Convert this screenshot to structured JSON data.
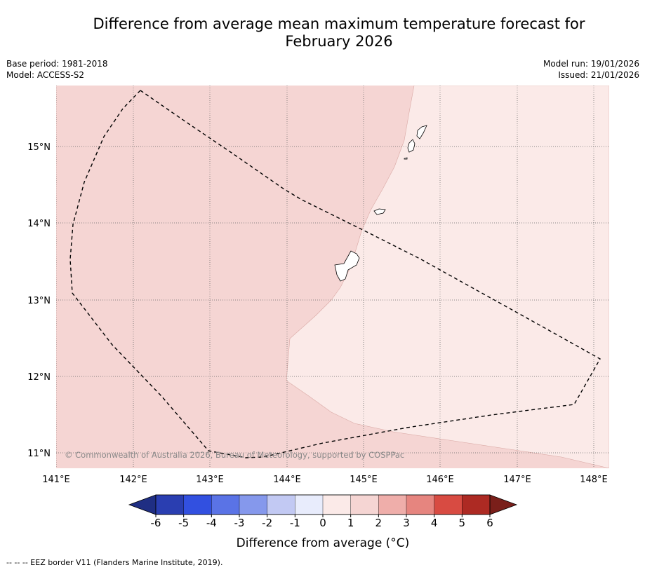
{
  "title": {
    "line1": "Difference from average mean maximum temperature forecast for",
    "line2": "February 2026"
  },
  "meta_left": {
    "base_period": "Base period: 1981-2018",
    "model": "Model: ACCESS-S2"
  },
  "meta_right": {
    "model_run": "Model run: 19/01/2026",
    "issued": "Issued: 21/01/2026"
  },
  "map": {
    "lon_range": [
      141.0,
      148.2
    ],
    "lat_range": [
      10.8,
      15.8
    ],
    "lon_ticks": [
      141,
      142,
      143,
      144,
      145,
      146,
      147,
      148
    ],
    "lon_labels": [
      "141°E",
      "142°E",
      "143°E",
      "144°E",
      "145°E",
      "146°E",
      "147°E",
      "148°E"
    ],
    "lat_ticks": [
      11,
      12,
      13,
      14,
      15
    ],
    "lat_labels": [
      "11°N",
      "12°N",
      "13°N",
      "14°N",
      "15°N"
    ],
    "copyright": "© Commonwealth of Australia 2026, Bureau of Meteorology, supported by COSPPac",
    "region_1_to_2_color": "#f5d5d3",
    "region_0_to_1_color": "#fbeae8"
  },
  "legend": {
    "labels": [
      "-6",
      "-5",
      "-4",
      "-3",
      "-2",
      "-1",
      "0",
      "1",
      "2",
      "3",
      "4",
      "5",
      "6"
    ],
    "colors": [
      "#2a3eb1",
      "#3250e0",
      "#5a73e6",
      "#8598ec",
      "#c2c9f3",
      "#e8ecfc",
      "#fbeae8",
      "#f5d5d3",
      "#efaeaa",
      "#e6857f",
      "#d84b42",
      "#ad2a23"
    ],
    "under_color": "#1f2e83",
    "over_color": "#7a1f1a",
    "title": "Difference from average (°C)"
  },
  "footnote": "-- -- -- EEZ border V11 (Flanders Marine Institute, 2019)."
}
